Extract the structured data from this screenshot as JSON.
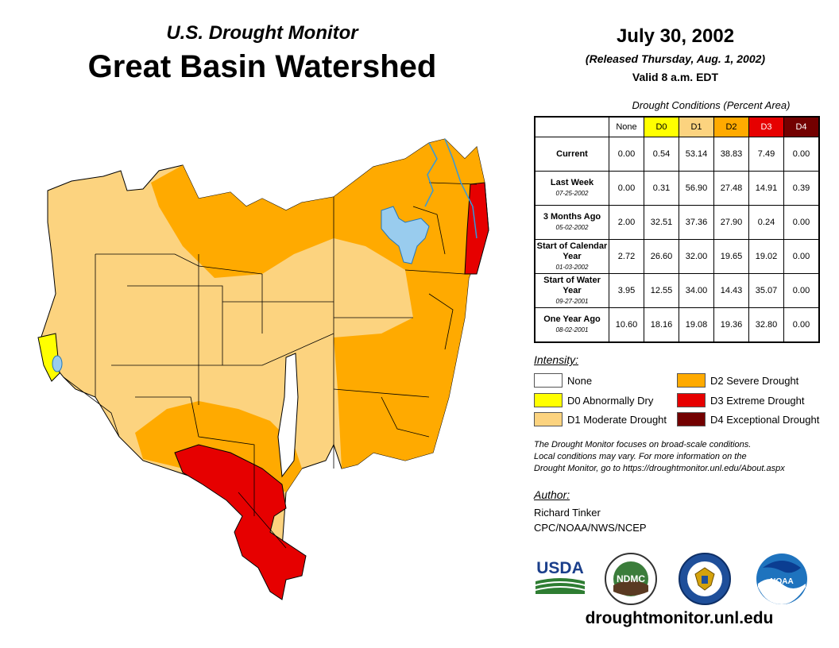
{
  "header": {
    "subtitle": "U.S. Drought Monitor",
    "title": "Great Basin Watershed",
    "date": "July 30, 2002",
    "released": "(Released Thursday, Aug. 1, 2002)",
    "valid": "Valid 8 a.m. EDT"
  },
  "table": {
    "caption": "Drought Conditions (Percent Area)",
    "columns": [
      "None",
      "D0",
      "D1",
      "D2",
      "D3",
      "D4"
    ],
    "column_colors": [
      "#ffffff",
      "#ffff00",
      "#fcd37f",
      "#ffaa00",
      "#e60000",
      "#730000"
    ],
    "rows": [
      {
        "label": "Current",
        "date": "",
        "values": [
          "0.00",
          "0.54",
          "53.14",
          "38.83",
          "7.49",
          "0.00"
        ]
      },
      {
        "label": "Last Week",
        "date": "07-25-2002",
        "values": [
          "0.00",
          "0.31",
          "56.90",
          "27.48",
          "14.91",
          "0.39"
        ]
      },
      {
        "label": "3 Months Ago",
        "date": "05-02-2002",
        "values": [
          "2.00",
          "32.51",
          "37.36",
          "27.90",
          "0.24",
          "0.00"
        ]
      },
      {
        "label": "Start of Calendar Year",
        "date": "01-03-2002",
        "values": [
          "2.72",
          "26.60",
          "32.00",
          "19.65",
          "19.02",
          "0.00"
        ]
      },
      {
        "label": "Start of Water Year",
        "date": "09-27-2001",
        "values": [
          "3.95",
          "12.55",
          "34.00",
          "14.43",
          "35.07",
          "0.00"
        ]
      },
      {
        "label": "One Year Ago",
        "date": "08-02-2001",
        "values": [
          "10.60",
          "18.16",
          "19.08",
          "19.36",
          "32.80",
          "0.00"
        ]
      }
    ]
  },
  "legend": {
    "title": "Intensity:",
    "items": [
      {
        "label": "None",
        "color": "#ffffff"
      },
      {
        "label": "D0 Abnormally Dry",
        "color": "#ffff00"
      },
      {
        "label": "D1 Moderate Drought",
        "color": "#fcd37f"
      },
      {
        "label": "D2 Severe Drought",
        "color": "#ffaa00"
      },
      {
        "label": "D3 Extreme Drought",
        "color": "#e60000"
      },
      {
        "label": "D4 Exceptional Drought",
        "color": "#730000"
      }
    ]
  },
  "note": {
    "line1": "The Drought Monitor focuses on broad-scale conditions.",
    "line2": "Local conditions may vary. For more information on the",
    "line3": "Drought Monitor, go to https://droughtmonitor.unl.edu/About.aspx"
  },
  "author": {
    "label": "Author:",
    "name": "Richard Tinker",
    "org": "CPC/NOAA/NWS/NCEP"
  },
  "logos": {
    "usda": "USDA",
    "ndmc": "NDMC",
    "noaa": "NOAA"
  },
  "footer": {
    "url": "droughtmonitor.unl.edu"
  },
  "map": {
    "water_color": "#99ccee"
  }
}
